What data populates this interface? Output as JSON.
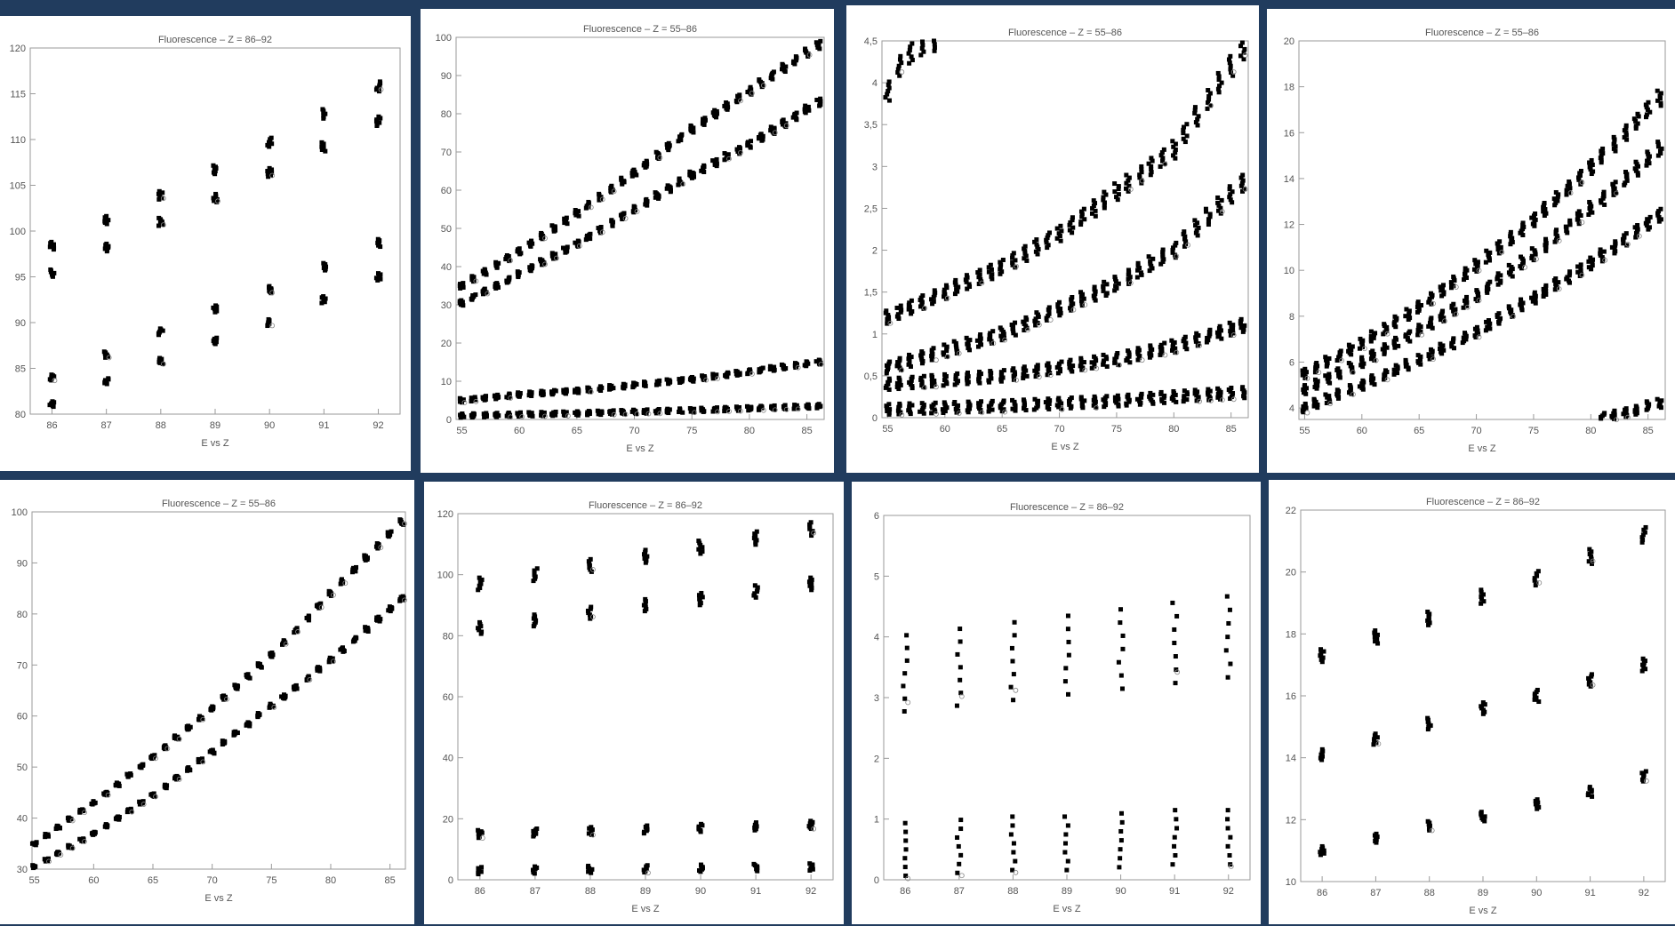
{
  "colors": {
    "frame": "#213c5e",
    "panel": "#ffffff",
    "axis": "#9a9a9a",
    "marker": "#000000",
    "text": "#555555"
  },
  "chart_data": [
    {
      "type": "scatter",
      "title": "Fluorescence – Z = 86–92",
      "xlabel": "E vs Z",
      "ylabel": "",
      "xlim": [
        85.6,
        92.4
      ],
      "ylim": [
        80,
        120
      ],
      "xticks": [
        86,
        87,
        88,
        89,
        90,
        91,
        92
      ],
      "yticks": [
        80,
        85,
        90,
        95,
        100,
        105,
        110,
        115,
        120
      ],
      "grid": false,
      "series": [
        {
          "x": [
            86,
            87,
            88,
            89,
            90,
            91,
            92
          ],
          "values": [
            98.4,
            101.2,
            103.9,
            106.7,
            109.7,
            112.8,
            115.8
          ]
        },
        {
          "x": [
            86,
            87,
            88,
            89,
            90,
            91,
            92
          ],
          "values": [
            95.4,
            98.2,
            101.0,
            103.6,
            106.4,
            109.2,
            112.0
          ]
        },
        {
          "x": [
            86,
            87,
            88,
            89,
            90,
            91,
            92
          ],
          "values": [
            84.0,
            86.5,
            89.0,
            91.5,
            93.6,
            96.1,
            98.7
          ]
        },
        {
          "x": [
            86,
            87,
            88,
            89,
            90,
            91,
            92
          ],
          "values": [
            81.1,
            83.6,
            85.8,
            88.0,
            90.0,
            92.5,
            95.0
          ]
        }
      ]
    },
    {
      "type": "scatter",
      "title": "Fluorescence – Z = 55–86",
      "xlabel": "E vs Z",
      "ylabel": "",
      "xlim": [
        54.5,
        86.5
      ],
      "ylim": [
        0,
        100
      ],
      "xticks": [
        55,
        60,
        65,
        70,
        75,
        80,
        85
      ],
      "yticks": [
        0,
        10,
        20,
        30,
        40,
        50,
        60,
        70,
        80,
        90,
        100
      ],
      "grid": false,
      "series": [
        {
          "x": [
            55,
            60,
            65,
            70,
            75,
            80,
            86
          ],
          "values": [
            35,
            44,
            54,
            64.5,
            76,
            86,
            98
          ]
        },
        {
          "x": [
            55,
            60,
            65,
            70,
            75,
            80,
            86
          ],
          "values": [
            30.5,
            38,
            46,
            55,
            64,
            72,
            83
          ]
        },
        {
          "x": [
            55,
            60,
            65,
            70,
            75,
            80,
            86
          ],
          "values": [
            5,
            6.5,
            7.5,
            9,
            10.5,
            12.5,
            15
          ]
        },
        {
          "x": [
            55,
            60,
            65,
            70,
            75,
            80,
            86
          ],
          "values": [
            1,
            1.3,
            1.6,
            2,
            2.4,
            2.9,
            3.5
          ]
        }
      ]
    },
    {
      "type": "scatter",
      "title": "Fluorescence – Z = 55–86",
      "xlabel": "E vs Z",
      "ylabel": "",
      "xlim": [
        54.5,
        86.5
      ],
      "ylim": [
        0,
        4.5
      ],
      "xticks": [
        55,
        60,
        65,
        70,
        75,
        80,
        85
      ],
      "yticks": [
        0,
        0.5,
        1,
        1.5,
        2,
        2.5,
        3,
        3.5,
        4,
        4.5
      ],
      "ytick_labels": [
        "0",
        "0,5",
        "1",
        "1,5",
        "2",
        "2,5",
        "3",
        "3,5",
        "4",
        "4,5"
      ],
      "grid": false,
      "series": [
        {
          "x": [
            55,
            60,
            65,
            70,
            75,
            80,
            86
          ],
          "values": [
            1.2,
            1.5,
            1.8,
            2.2,
            2.7,
            3.2,
            4.4
          ]
        },
        {
          "x": [
            55,
            60,
            65,
            70,
            75,
            80,
            86
          ],
          "values": [
            0.6,
            0.8,
            1.0,
            1.3,
            1.6,
            2.0,
            2.8
          ]
        },
        {
          "x": [
            55,
            60,
            65,
            70,
            75,
            80,
            86
          ],
          "values": [
            0.4,
            0.45,
            0.5,
            0.6,
            0.7,
            0.85,
            1.1
          ]
        },
        {
          "x": [
            55,
            60,
            65,
            70,
            75,
            80,
            86
          ],
          "values": [
            0.1,
            0.12,
            0.14,
            0.17,
            0.2,
            0.25,
            0.3
          ]
        },
        {
          "x": [
            55,
            56,
            57,
            58,
            59
          ],
          "values": [
            3.9,
            4.2,
            4.35,
            4.45,
            4.5
          ]
        }
      ]
    },
    {
      "type": "scatter",
      "title": "Fluorescence – Z = 55–86",
      "xlabel": "E vs Z",
      "ylabel": "",
      "xlim": [
        54.5,
        86.5
      ],
      "ylim": [
        3.5,
        20
      ],
      "xticks": [
        55,
        60,
        65,
        70,
        75,
        80,
        85
      ],
      "yticks": [
        4,
        6,
        8,
        10,
        12,
        14,
        16,
        18,
        20
      ],
      "grid": false,
      "series": [
        {
          "x": [
            55,
            60,
            65,
            70,
            75,
            80,
            86
          ],
          "values": [
            5.5,
            6.8,
            8.4,
            10.2,
            12.2,
            14.5,
            17.5
          ]
        },
        {
          "x": [
            55,
            60,
            65,
            70,
            75,
            80,
            86
          ],
          "values": [
            4.8,
            6.0,
            7.4,
            8.9,
            10.7,
            12.7,
            15.3
          ]
        },
        {
          "x": [
            55,
            60,
            65,
            70,
            75,
            80,
            86
          ],
          "values": [
            4.0,
            5.0,
            6.1,
            7.3,
            8.8,
            10.3,
            12.4
          ]
        },
        {
          "x": [
            81,
            82,
            83,
            84,
            85,
            86
          ],
          "values": [
            3.6,
            3.7,
            3.8,
            3.9,
            4.1,
            4.2
          ]
        }
      ]
    },
    {
      "type": "scatter",
      "title": "Fluorescence – Z = 55–86",
      "xlabel": "E vs Z",
      "ylabel": "",
      "xlim": [
        54.8,
        86.3
      ],
      "ylim": [
        30,
        100
      ],
      "xticks": [
        55,
        60,
        65,
        70,
        75,
        80,
        85
      ],
      "yticks": [
        30,
        40,
        50,
        60,
        70,
        80,
        90,
        100
      ],
      "grid": false,
      "series": [
        {
          "x": [
            55,
            60,
            65,
            70,
            75,
            80,
            86
          ],
          "values": [
            35,
            43,
            52,
            61.5,
            72,
            84,
            98
          ]
        },
        {
          "x": [
            55,
            60,
            65,
            70,
            75,
            80,
            86
          ],
          "values": [
            30.5,
            37,
            44.5,
            53,
            62,
            71,
            83
          ]
        }
      ]
    },
    {
      "type": "scatter",
      "title": "Fluorescence – Z = 86–92",
      "xlabel": "E vs Z",
      "ylabel": "",
      "xlim": [
        85.6,
        92.4
      ],
      "ylim": [
        0,
        120
      ],
      "xticks": [
        86,
        87,
        88,
        89,
        90,
        91,
        92
      ],
      "yticks": [
        0,
        20,
        40,
        60,
        80,
        100,
        120
      ],
      "grid": false,
      "series": [
        {
          "x": [
            86,
            87,
            88,
            89,
            90,
            91,
            92
          ],
          "values": [
            97,
            100,
            103,
            106,
            109,
            112,
            115
          ]
        },
        {
          "x": [
            86,
            87,
            88,
            89,
            90,
            91,
            92
          ],
          "values": [
            82.5,
            85,
            87.5,
            90,
            92,
            94.5,
            97
          ]
        },
        {
          "x": [
            86,
            87,
            88,
            89,
            90,
            91,
            92
          ],
          "values": [
            15,
            15.5,
            16,
            16.5,
            17,
            17.5,
            18
          ]
        },
        {
          "x": [
            86,
            87,
            88,
            89,
            90,
            91,
            92
          ],
          "values": [
            3,
            3.2,
            3.4,
            3.6,
            3.8,
            4,
            4.2
          ]
        }
      ]
    },
    {
      "type": "scatter",
      "title": "Fluorescence – Z = 86–92",
      "xlabel": "E vs Z",
      "ylabel": "",
      "xlim": [
        85.6,
        92.4
      ],
      "ylim": [
        0,
        6
      ],
      "xticks": [
        86,
        87,
        88,
        89,
        90,
        91,
        92
      ],
      "yticks": [
        0,
        1,
        2,
        3,
        4,
        5,
        6
      ],
      "grid": false,
      "series": [
        {
          "x": [
            86,
            87,
            88,
            89,
            90,
            91,
            92
          ],
          "values": [
            3.4,
            3.5,
            3.6,
            3.7,
            3.8,
            3.9,
            4.0
          ]
        },
        {
          "x": [
            86,
            87,
            88,
            89,
            90,
            91,
            92
          ],
          "values": [
            0.5,
            0.55,
            0.6,
            0.6,
            0.65,
            0.7,
            0.7
          ]
        }
      ]
    },
    {
      "type": "scatter",
      "title": "Fluorescence – Z = 86–92",
      "xlabel": "E vs Z",
      "ylabel": "",
      "xlim": [
        85.6,
        92.4
      ],
      "ylim": [
        10,
        22
      ],
      "xticks": [
        86,
        87,
        88,
        89,
        90,
        91,
        92
      ],
      "yticks": [
        10,
        12,
        14,
        16,
        18,
        20,
        22
      ],
      "grid": false,
      "series": [
        {
          "x": [
            86,
            87,
            88,
            89,
            90,
            91,
            92
          ],
          "values": [
            17.3,
            17.9,
            18.5,
            19.2,
            19.8,
            20.5,
            21.2
          ]
        },
        {
          "x": [
            86,
            87,
            88,
            89,
            90,
            91,
            92
          ],
          "values": [
            14.1,
            14.6,
            15.1,
            15.6,
            16.0,
            16.5,
            17.0
          ]
        },
        {
          "x": [
            86,
            87,
            88,
            89,
            90,
            91,
            92
          ],
          "values": [
            11.0,
            11.4,
            11.8,
            12.1,
            12.5,
            12.9,
            13.4
          ]
        }
      ]
    }
  ]
}
